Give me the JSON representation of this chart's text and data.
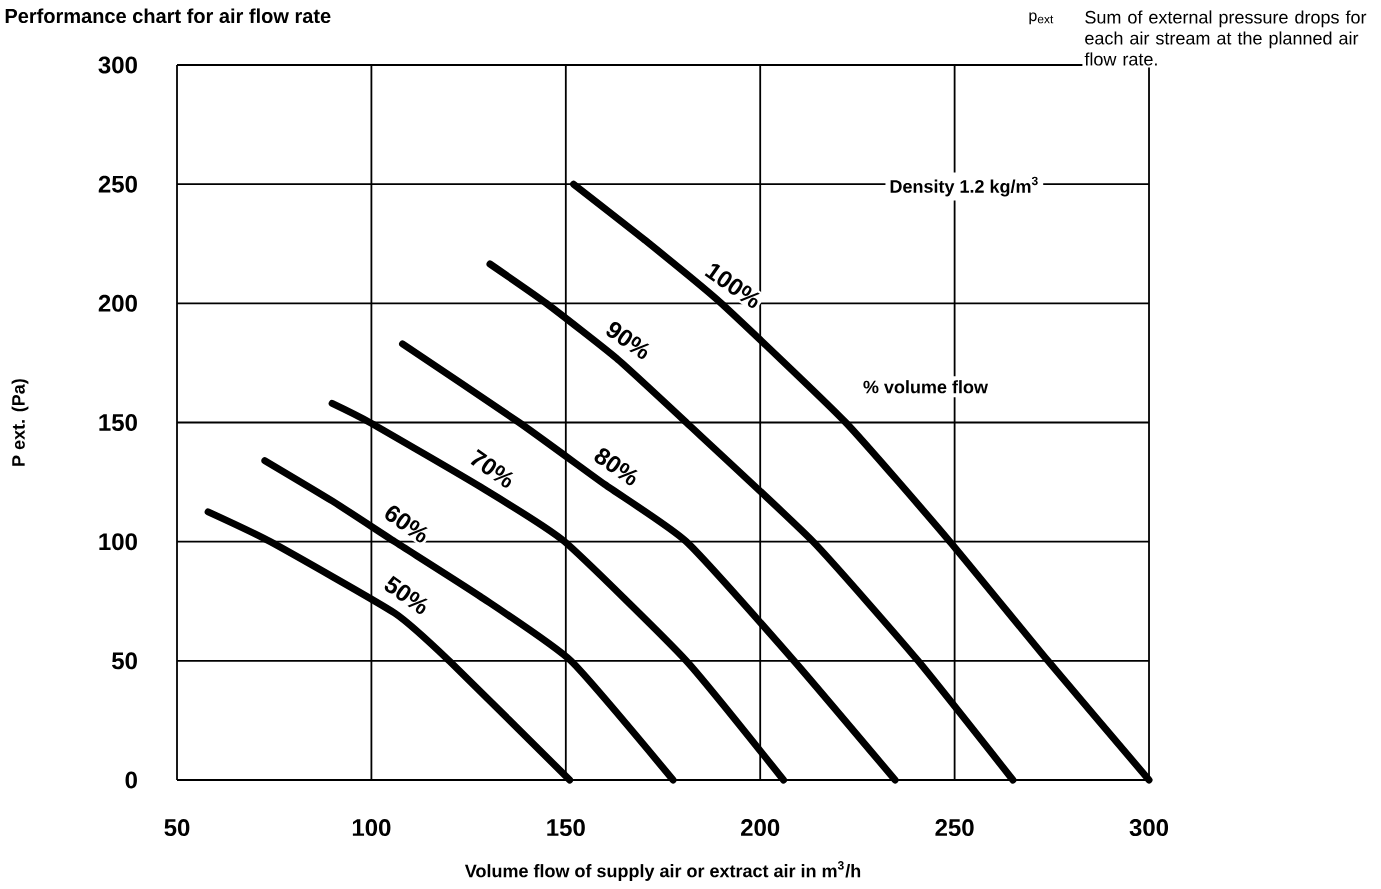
{
  "chart_data": {
    "type": "line",
    "title": "Performance chart for air flow rate",
    "xlabel": "Volume flow of supply air or extract air in m$^{3}$/h",
    "ylabel": "P ext. (Pa)",
    "xlim": [
      50,
      300
    ],
    "ylim": [
      0,
      300
    ],
    "xticks": [
      50,
      100,
      150,
      200,
      250,
      300
    ],
    "yticks": [
      0,
      50,
      100,
      150,
      200,
      250,
      300
    ],
    "grid": true,
    "annotations": [
      "Density 1.2 kg/m$^{3}$",
      "% volume flow",
      "p$_{ext}$",
      "Sum of external pressure drops for each air stream at the planned air flow rate."
    ],
    "series": [
      {
        "name": "100%",
        "color": "#000000",
        "x": [
          152,
          170,
          190,
          222,
          248.8,
          274,
          300
        ],
        "values": [
          250,
          227,
          200,
          150,
          100,
          50,
          0
        ]
      },
      {
        "name": "90%",
        "color": "#000000",
        "x": [
          130.5,
          145,
          163,
          181,
          213.6,
          240.6,
          265
        ],
        "values": [
          216.5,
          200,
          177,
          150,
          100,
          50,
          0
        ]
      },
      {
        "name": "80%",
        "color": "#000000",
        "x": [
          108,
          138,
          160,
          181,
          208.7,
          234.7
        ],
        "values": [
          183,
          150,
          124,
          100,
          50,
          0
        ]
      },
      {
        "name": "70%",
        "color": "#000000",
        "x": [
          89.9,
          99.6,
          128,
          149.7,
          181,
          206
        ],
        "values": [
          158,
          150,
          123,
          100,
          50,
          0
        ]
      },
      {
        "name": "60%",
        "color": "#000000",
        "x": [
          72.6,
          90,
          106,
          128,
          151.3,
          177.6
        ],
        "values": [
          134,
          117,
          100,
          77,
          50,
          0
        ]
      },
      {
        "name": "50%",
        "color": "#000000",
        "x": [
          58,
          74,
          106,
          120,
          151
        ],
        "values": [
          112.5,
          100,
          70,
          50,
          0
        ]
      }
    ]
  }
}
